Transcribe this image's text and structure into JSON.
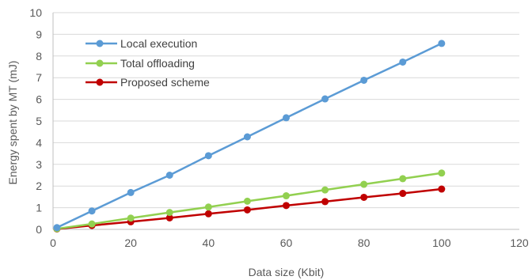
{
  "chart_data": {
    "type": "line",
    "title": "",
    "xlabel": "Data size (Kbit)",
    "ylabel": "Energy spent by MT (mJ)",
    "xlim": [
      0,
      120
    ],
    "ylim": [
      0,
      10
    ],
    "xticks": [
      0,
      20,
      40,
      60,
      80,
      100,
      120
    ],
    "yticks": [
      0,
      1,
      2,
      3,
      4,
      5,
      6,
      7,
      8,
      9,
      10
    ],
    "grid": "horizontal",
    "legend_position": "top-left",
    "x": [
      1,
      10,
      20,
      30,
      40,
      50,
      60,
      70,
      80,
      90,
      100
    ],
    "series": [
      {
        "name": "Local execution",
        "color": "#5b9bd5",
        "values": [
          0.08,
          0.85,
          1.7,
          2.5,
          3.4,
          4.27,
          5.15,
          6.02,
          6.88,
          7.72,
          8.58
        ]
      },
      {
        "name": "Total offloading",
        "color": "#92d050",
        "values": [
          0.03,
          0.25,
          0.52,
          0.78,
          1.03,
          1.3,
          1.55,
          1.82,
          2.08,
          2.34,
          2.6
        ]
      },
      {
        "name": "Proposed scheme",
        "color": "#c00000",
        "values": [
          0.02,
          0.18,
          0.35,
          0.53,
          0.72,
          0.9,
          1.1,
          1.28,
          1.48,
          1.66,
          1.86
        ]
      }
    ]
  }
}
